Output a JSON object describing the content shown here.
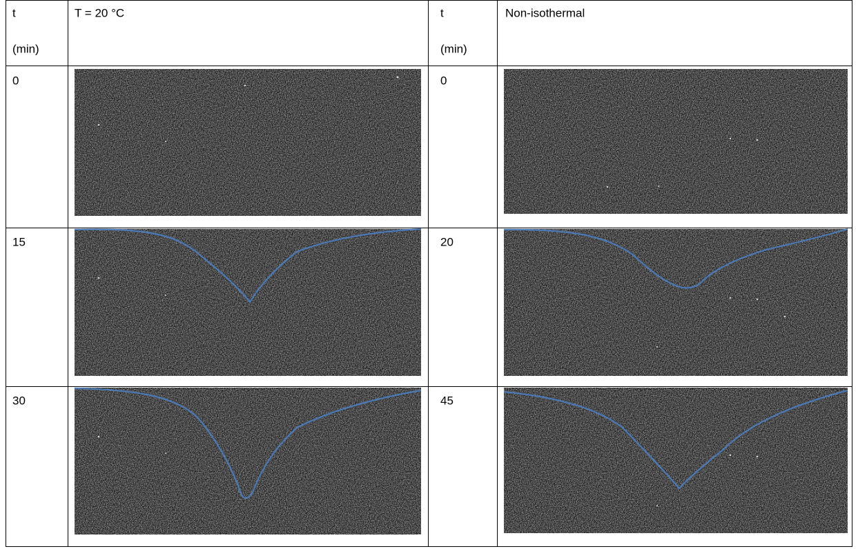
{
  "table": {
    "header": [
      [
        "t",
        "(min)"
      ],
      [
        "T = 20 °C"
      ],
      [
        "t",
        "(min)"
      ],
      [
        "Non-isothermal"
      ]
    ],
    "rows": [
      [
        "0",
        "0"
      ],
      [
        "15",
        "20"
      ],
      [
        "30",
        "45"
      ]
    ]
  }
}
